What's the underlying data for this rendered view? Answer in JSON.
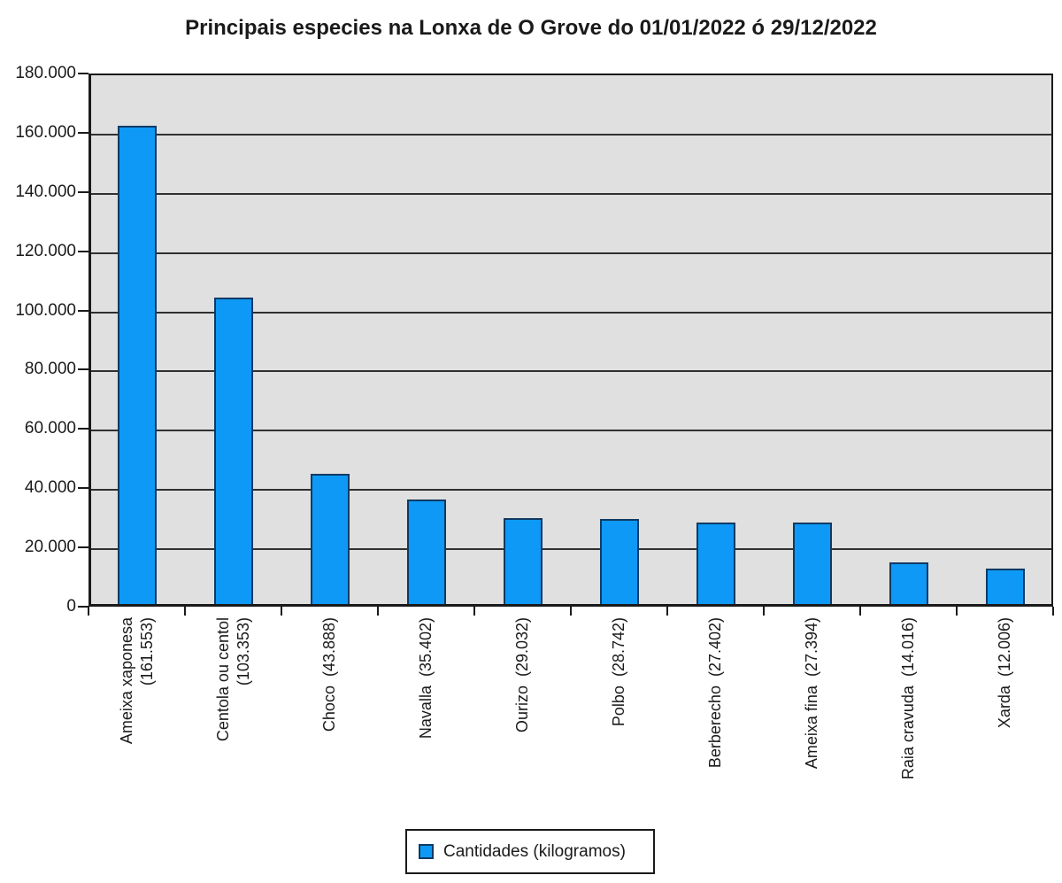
{
  "title": "Principais especies na Lonxa de O Grove do 01/01/2022 ó 29/12/2022",
  "legend": {
    "label": "Cantidades (kilogramos)",
    "position": "bottom-center"
  },
  "colors": {
    "bar_fill": "#0d99f5",
    "bar_border": "#103a63",
    "plot_background": "#e0e0e0",
    "gridline": "#303030",
    "frame": "#1a1a1a",
    "text": "#1a1a1a",
    "page_background": "#ffffff"
  },
  "y_axis": {
    "ticks": [
      {
        "label": "180.000",
        "value": 180000
      },
      {
        "label": "160.000",
        "value": 160000
      },
      {
        "label": "140.000",
        "value": 140000
      },
      {
        "label": "120.000",
        "value": 120000
      },
      {
        "label": "100.000",
        "value": 100000
      },
      {
        "label": "80.000",
        "value": 80000
      },
      {
        "label": "60.000",
        "value": 60000
      },
      {
        "label": "40.000",
        "value": 40000
      },
      {
        "label": "20.000",
        "value": 20000
      },
      {
        "label": "0",
        "value": 0
      }
    ]
  },
  "chart_data": {
    "type": "bar",
    "title": "Principais especies na Lonxa de O Grove do 01/01/2022 ó 29/12/2022",
    "series_name": "Cantidades (kilogramos)",
    "categories": [
      "Ameixa xaponesa",
      "Centola ou centol",
      "Choco",
      "Navalla",
      "Ourizo",
      "Polbo",
      "Berberecho",
      "Ameixa fina",
      "Raia cravuda",
      "Xarda"
    ],
    "values": [
      161553,
      103353,
      43888,
      35402,
      29032,
      28742,
      27402,
      27394,
      14016,
      12006
    ],
    "values_display": [
      "161.553",
      "103.353",
      "43.888",
      "35.402",
      "29.032",
      "28.742",
      "27.402",
      "27.394",
      "14.016",
      "12.006"
    ],
    "xtick_labels": [
      "Ameixa xaponesa\n(161.553)",
      "Centola ou centol\n(103.353)",
      "Choco  (43.888)",
      "Navalla  (35.402)",
      "Ourizo  (29.032)",
      "Polbo  (28.742)",
      "Berberecho  (27.402)",
      "Ameixa fina  (27.394)",
      "Raia cravuda  (14.016)",
      "Xarda  (12.006)"
    ],
    "xlabel": "",
    "ylabel": "",
    "ylim": [
      0,
      180000
    ],
    "ytick_interval": 20000,
    "grid": "horizontal-major",
    "legend_position": "bottom-center"
  }
}
